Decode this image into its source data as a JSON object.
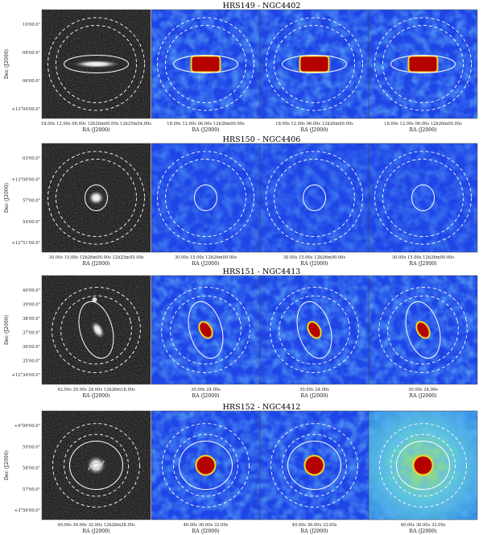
{
  "rows": [
    {
      "title": "HRS149 - NGC4402",
      "y_label": "Dec (J2000)",
      "y_ticks": [
        "10'00.0\"",
        "08'00.0\"",
        "06'00.0\"",
        "+13°04'00.0\""
      ],
      "x_label": "RA (J2000)",
      "x_ticks_optical": "18.00s 12.00s 06.00s 12h26m00.00s 12h25m54.00s",
      "x_ticks": "18.00s 12.00s 06.00s 12h26m00.00s",
      "galaxy": "edge-on",
      "map_intensity": "bright"
    },
    {
      "title": "HRS150 - NGC4406",
      "y_label": "Dec (J2000)",
      "y_ticks": [
        "03'00.0\"",
        "+13°00'00.0\"",
        "57'00.0\"",
        "54'00.0\"",
        "+12°51'00.0\""
      ],
      "x_label": "RA (J2000)",
      "x_ticks_optical": "30.00s 15.00s 12h26m00.00s 12h25m45.00s",
      "x_ticks": "30.00s 15.00s 12h26m00.00s",
      "galaxy": "elliptical",
      "map_intensity": "faint"
    },
    {
      "title": "HRS151 - NGC4413",
      "y_label": "Dec (J2000)",
      "y_ticks": [
        "40'00.0\"",
        "39'00.0\"",
        "38'00.0\"",
        "37'00.0\"",
        "36'00.0\"",
        "35'00.0\"",
        "+12°34'00.0\""
      ],
      "x_label": "RA (J2000)",
      "x_ticks_optical": "42.00s 30.00s 24.00s 12h26m18.00s",
      "x_ticks": "30.00s 24.00s",
      "galaxy": "spiral",
      "map_intensity": "medium"
    },
    {
      "title": "HRS152 - NGC4412",
      "y_label": "Dec (J2000)",
      "y_ticks": [
        "+4°00'00.0\"",
        "59'00.0\"",
        "58'00.0\"",
        "57'00.0\"",
        "+3°56'00.0\""
      ],
      "x_label": "RA (J2000)",
      "x_ticks_optical": "40.00s 36.00s 32.00s 12h26m28.00s",
      "x_ticks": "40.00s 36.00s 32.00s",
      "galaxy": "barred",
      "map_intensity": "bright"
    }
  ],
  "colors": {
    "map_bg": "#1f45e6",
    "map_blob": "#3da8f5",
    "core_red": "#b50000",
    "core_yellow": "#f2d81e",
    "aperture": "#ffffff",
    "optical_bg": "#111111"
  }
}
